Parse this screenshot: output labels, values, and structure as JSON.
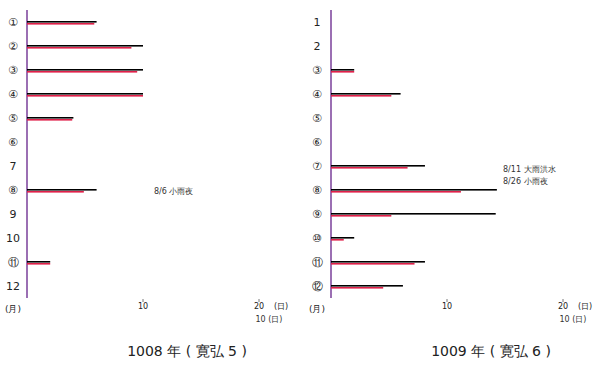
{
  "chart_data": [
    {
      "type": "bar",
      "orientation": "horizontal",
      "title": "1008 年 ( 寛弘 5 )",
      "categories": [
        "①",
        "②",
        "③",
        "④",
        "⑤",
        "⑥",
        "7",
        "⑧",
        "9",
        "10",
        "⑪",
        "12"
      ],
      "series": [
        {
          "color": "#000000",
          "values": [
            6,
            10,
            10,
            10,
            4,
            null,
            null,
            6,
            null,
            null,
            2,
            null
          ]
        },
        {
          "color": "#e0204a",
          "values": [
            5.8,
            9,
            9.5,
            10,
            3.9,
            null,
            null,
            4.9,
            null,
            null,
            2,
            null
          ]
        }
      ],
      "xlim": [
        0,
        20
      ],
      "xticks": [
        10,
        20
      ],
      "x_label": "(日)",
      "y_label": "(月)",
      "annotations": [
        "8/6 小雨夜",
        "10 (日)"
      ]
    },
    {
      "type": "bar",
      "orientation": "horizontal",
      "title": "1009 年 ( 寛弘 6 )",
      "categories": [
        "1",
        "2",
        "③",
        "④",
        "⑤",
        "⑥",
        "⑦",
        "⑧",
        "⑨",
        "⑩",
        "⑪",
        "⑫"
      ],
      "series": [
        {
          "color": "#000000",
          "values": [
            null,
            null,
            2,
            6,
            null,
            null,
            8.1,
            14.3,
            14.2,
            2,
            8.1,
            6.2
          ]
        },
        {
          "color": "#e0204a",
          "values": [
            null,
            null,
            2,
            5.2,
            null,
            null,
            6.6,
            11.2,
            5.2,
            1.1,
            7.2,
            4.5
          ]
        }
      ],
      "xlim": [
        0,
        20
      ],
      "xticks": [
        10,
        20
      ],
      "x_label": "(日)",
      "y_label": "(月)",
      "annotations": [
        "8/11 大雨洪水",
        "8/26 小雨夜",
        "10 (日)"
      ]
    }
  ]
}
